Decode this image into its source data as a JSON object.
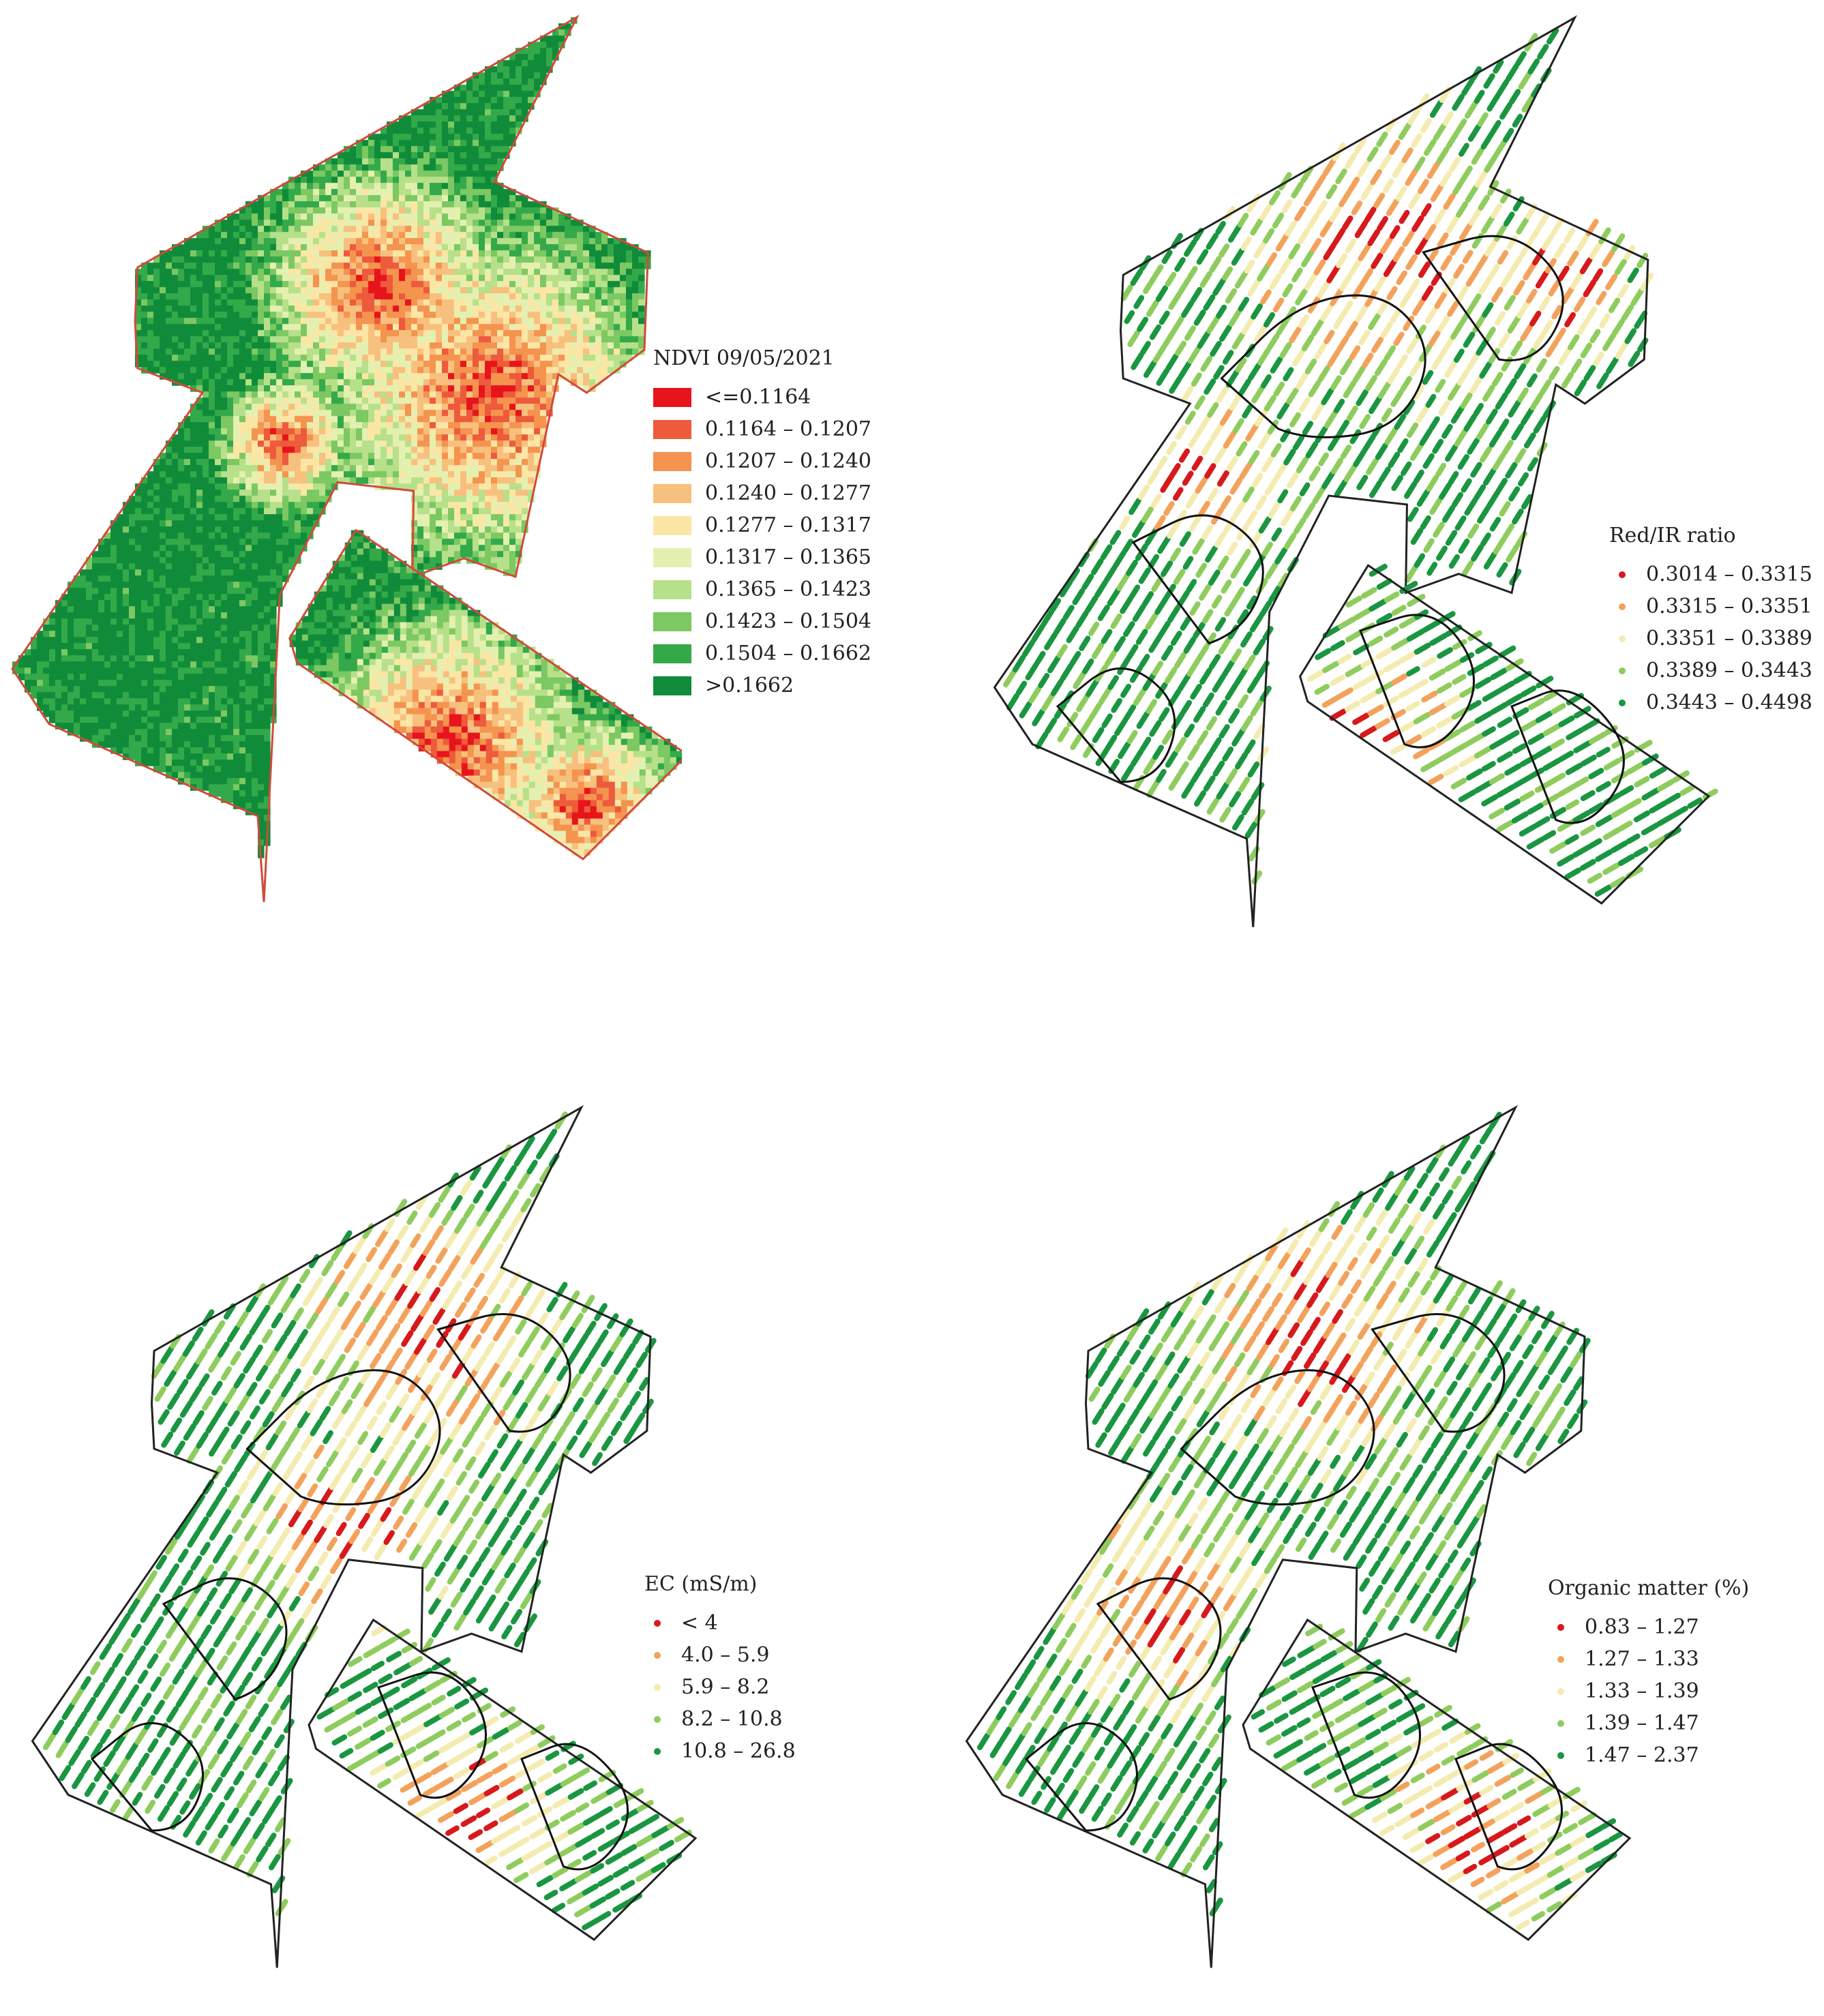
{
  "maps": [
    {
      "id": "ndvi",
      "style": "raster",
      "legend_title": "NDVI 09/05/2021",
      "classes": [
        {
          "label": "<=0.1164",
          "color": "#e8141b"
        },
        {
          "label": "0.1164 – 0.1207",
          "color": "#ee5a3c"
        },
        {
          "label": "0.1207 – 0.1240",
          "color": "#f4944f"
        },
        {
          "label": "0.1240 – 0.1277",
          "color": "#f8c07e"
        },
        {
          "label": "0.1277 – 0.1317",
          "color": "#fbe6a6"
        },
        {
          "label": "0.1317 – 0.1365",
          "color": "#e4f0b0"
        },
        {
          "label": "0.1365 – 0.1423",
          "color": "#b7e08a"
        },
        {
          "label": "0.1423 – 0.1504",
          "color": "#7cc862"
        },
        {
          "label": "0.1504 – 0.1662",
          "color": "#33a94a"
        },
        {
          "label": ">0.1662",
          "color": "#108b3a"
        }
      ]
    },
    {
      "id": "red-ir",
      "style": "points",
      "legend_title": "Red/IR ratio",
      "classes": [
        {
          "label": "0.3014 – 0.3315",
          "color": "#d7191c"
        },
        {
          "label": "0.3315 – 0.3351",
          "color": "#f3a25c"
        },
        {
          "label": "0.3351 – 0.3389",
          "color": "#f4ebb0"
        },
        {
          "label": "0.3389 – 0.3443",
          "color": "#8fcc5e"
        },
        {
          "label": "0.3443 – 0.4498",
          "color": "#1a9641"
        }
      ]
    },
    {
      "id": "ec",
      "style": "points",
      "legend_title": "EC (mS/m)",
      "classes": [
        {
          "label": "< 4",
          "color": "#d7191c"
        },
        {
          "label": "4.0 – 5.9",
          "color": "#f3a25c"
        },
        {
          "label": "5.9 – 8.2",
          "color": "#f4ebb0"
        },
        {
          "label": "8.2 – 10.8",
          "color": "#8fcc5e"
        },
        {
          "label": "10.8 – 26.8",
          "color": "#1a9641"
        }
      ]
    },
    {
      "id": "om",
      "style": "points",
      "legend_title": "Organic matter (%)",
      "classes": [
        {
          "label": "0.83 – 1.27",
          "color": "#d7191c"
        },
        {
          "label": "1.27 – 1.33",
          "color": "#f3a25c"
        },
        {
          "label": "1.33 – 1.39",
          "color": "#f4ebb0"
        },
        {
          "label": "1.39 – 1.47",
          "color": "#8fcc5e"
        },
        {
          "label": "1.47 – 2.37",
          "color": "#1a9641"
        }
      ]
    }
  ]
}
